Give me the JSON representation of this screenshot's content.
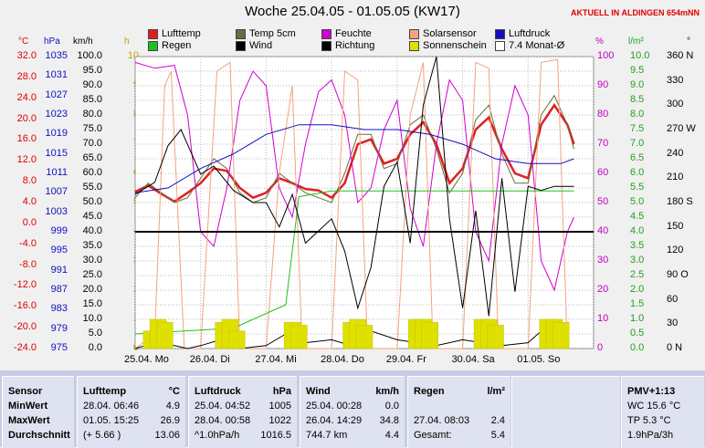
{
  "title": "Woche 25.04.05 - 01.05.05 (KW17)",
  "aktuell": "AKTUELL IN ALDINGEN 654mNN",
  "legend": [
    {
      "label": "Lufttemp",
      "color": "#e02020"
    },
    {
      "label": "Temp 5cm",
      "color": "#6b6b40"
    },
    {
      "label": "Feuchte",
      "color": "#d000d0"
    },
    {
      "label": "Solarsensor",
      "color": "#f4a37c"
    },
    {
      "label": "Luftdruck",
      "color": "#1010c0"
    },
    {
      "label": "Regen",
      "color": "#20c020"
    },
    {
      "label": "Wind",
      "color": "#000000"
    },
    {
      "label": "Richtung",
      "color": "#000000"
    },
    {
      "label": "Sonnenschein",
      "color": "#e0e000"
    },
    {
      "label": "7.4 Monat-Ø",
      "color": "#ffffff"
    }
  ],
  "axis_units": {
    "temp": "°C",
    "press": "hPa",
    "wind": "km/h",
    "h": "h",
    "pct": "%",
    "rain": "l/m²",
    "deg": "°"
  },
  "chart_data": {
    "type": "line",
    "x": [
      "25.04. Mo",
      "26.04. Di",
      "27.04. Mi",
      "28.04. Do",
      "29.04. Fr",
      "30.04. Sa",
      "01.05. So"
    ],
    "axes": {
      "temp": {
        "unit": "°C",
        "range": [
          -24,
          36
        ],
        "ticks": [
          "32.0",
          "28.0",
          "24.0",
          "20.0",
          "16.0",
          "12.0",
          "8.0",
          "4.0",
          "0.0",
          "-4.0",
          "-8.0",
          "-12.0",
          "-16.0",
          "-20.0",
          "-24.0"
        ]
      },
      "press": {
        "unit": "hPa",
        "range": [
          975,
          1035
        ],
        "ticks": [
          "1035",
          "1031",
          "1027",
          "1023",
          "1019",
          "1015",
          "1011",
          "1007",
          "1003",
          "999",
          "995",
          "991",
          "987",
          "983",
          "979",
          "975"
        ]
      },
      "wind": {
        "unit": "km/h",
        "range": [
          0,
          100
        ],
        "ticks": [
          "100.0",
          "95.0",
          "90.0",
          "85.0",
          "80.0",
          "75.0",
          "70.0",
          "65.0",
          "60.0",
          "55.0",
          "50.0",
          "45.0",
          "40.0",
          "35.0",
          "30.0",
          "25.0",
          "20.0",
          "15.0",
          "10.0",
          "5.0",
          "0.0"
        ]
      },
      "h": {
        "unit": "h",
        "range": [
          0,
          10
        ],
        "ticks": [
          "10",
          "9",
          "8",
          "7",
          "6",
          "5",
          "4",
          "3",
          "2",
          "1",
          "0"
        ]
      },
      "pct": {
        "unit": "%",
        "range": [
          0,
          100
        ],
        "ticks": [
          "100",
          "90",
          "80",
          "70",
          "60",
          "50",
          "40",
          "30",
          "20",
          "10",
          "0"
        ]
      },
      "rain": {
        "unit": "l/m²",
        "range": [
          0,
          10
        ],
        "ticks": [
          "10.0",
          "9.5",
          "9.0",
          "8.5",
          "8.0",
          "7.5",
          "7.0",
          "6.5",
          "6.0",
          "5.5",
          "5.0",
          "4.5",
          "4.0",
          "3.5",
          "3.0",
          "2.5",
          "2.0",
          "1.5",
          "1.0",
          "0.5",
          "0.0"
        ]
      },
      "deg": {
        "unit": "°",
        "range": [
          0,
          360
        ],
        "ticks": [
          "360 N",
          "330",
          "300",
          "270 W",
          "240",
          "210",
          "180 S",
          "150",
          "120",
          "90 O",
          "60",
          "30",
          "0 N"
        ]
      }
    },
    "series": [
      {
        "name": "Lufttemp",
        "axis": "temp",
        "color": "#e02020",
        "values": [
          [
            0,
            8.2
          ],
          [
            0.2,
            9.5
          ],
          [
            0.4,
            7.8
          ],
          [
            0.6,
            6.2
          ],
          [
            0.8,
            8
          ],
          [
            1,
            10
          ],
          [
            1.2,
            13
          ],
          [
            1.4,
            12.5
          ],
          [
            1.6,
            9
          ],
          [
            1.8,
            7
          ],
          [
            2,
            8
          ],
          [
            2.2,
            11
          ],
          [
            2.4,
            10
          ],
          [
            2.6,
            8.8
          ],
          [
            2.8,
            8.5
          ],
          [
            3,
            7
          ],
          [
            3.2,
            10
          ],
          [
            3.4,
            18
          ],
          [
            3.6,
            19
          ],
          [
            3.8,
            14
          ],
          [
            4,
            15
          ],
          [
            4.2,
            20
          ],
          [
            4.4,
            22.5
          ],
          [
            4.6,
            18
          ],
          [
            4.8,
            10
          ],
          [
            5,
            13
          ],
          [
            5.2,
            21
          ],
          [
            5.4,
            23.5
          ],
          [
            5.6,
            17
          ],
          [
            5.8,
            12
          ],
          [
            6,
            11
          ],
          [
            6.2,
            22
          ],
          [
            6.4,
            26
          ],
          [
            6.6,
            22
          ],
          [
            6.7,
            18
          ]
        ]
      },
      {
        "name": "Temp 5cm",
        "axis": "temp",
        "color": "#6b6b40",
        "values": [
          [
            0,
            7
          ],
          [
            0.2,
            10
          ],
          [
            0.4,
            8
          ],
          [
            0.6,
            6
          ],
          [
            0.8,
            7
          ],
          [
            1,
            11
          ],
          [
            1.2,
            15
          ],
          [
            1.4,
            13
          ],
          [
            1.6,
            8
          ],
          [
            1.8,
            6
          ],
          [
            2,
            7
          ],
          [
            2.2,
            12
          ],
          [
            2.4,
            10
          ],
          [
            2.6,
            8
          ],
          [
            2.8,
            7
          ],
          [
            3,
            6
          ],
          [
            3.2,
            12
          ],
          [
            3.4,
            20
          ],
          [
            3.6,
            20
          ],
          [
            3.8,
            13
          ],
          [
            4,
            14
          ],
          [
            4.2,
            22
          ],
          [
            4.4,
            24
          ],
          [
            4.6,
            17
          ],
          [
            4.8,
            8
          ],
          [
            5,
            12
          ],
          [
            5.2,
            23
          ],
          [
            5.4,
            26
          ],
          [
            5.6,
            16
          ],
          [
            5.8,
            10
          ],
          [
            6,
            10
          ],
          [
            6.2,
            24
          ],
          [
            6.4,
            28
          ],
          [
            6.6,
            22
          ],
          [
            6.7,
            17
          ]
        ]
      },
      {
        "name": "Feuchte",
        "axis": "pct",
        "color": "#d000d0",
        "values": [
          [
            0,
            98
          ],
          [
            0.3,
            96
          ],
          [
            0.6,
            97
          ],
          [
            0.8,
            80
          ],
          [
            1,
            40
          ],
          [
            1.2,
            35
          ],
          [
            1.4,
            55
          ],
          [
            1.6,
            85
          ],
          [
            1.8,
            95
          ],
          [
            2,
            90
          ],
          [
            2.2,
            55
          ],
          [
            2.4,
            45
          ],
          [
            2.6,
            70
          ],
          [
            2.8,
            88
          ],
          [
            3,
            92
          ],
          [
            3.2,
            80
          ],
          [
            3.4,
            50
          ],
          [
            3.6,
            55
          ],
          [
            3.8,
            75
          ],
          [
            4,
            85
          ],
          [
            4.2,
            48
          ],
          [
            4.4,
            35
          ],
          [
            4.6,
            70
          ],
          [
            4.8,
            92
          ],
          [
            5,
            85
          ],
          [
            5.2,
            40
          ],
          [
            5.4,
            30
          ],
          [
            5.6,
            70
          ],
          [
            5.8,
            90
          ],
          [
            6,
            80
          ],
          [
            6.2,
            30
          ],
          [
            6.4,
            20
          ],
          [
            6.6,
            40
          ],
          [
            6.7,
            45
          ]
        ]
      },
      {
        "name": "Solarsensor",
        "axis": "pct",
        "color": "#f4a37c",
        "values": [
          [
            0,
            0
          ],
          [
            0.3,
            5
          ],
          [
            0.45,
            90
          ],
          [
            0.55,
            95
          ],
          [
            0.75,
            0
          ],
          [
            1,
            0
          ],
          [
            1.25,
            95
          ],
          [
            1.45,
            98
          ],
          [
            1.6,
            0
          ],
          [
            2,
            0
          ],
          [
            2.2,
            60
          ],
          [
            2.4,
            90
          ],
          [
            2.55,
            0
          ],
          [
            3,
            0
          ],
          [
            3.2,
            95
          ],
          [
            3.4,
            92
          ],
          [
            3.55,
            0
          ],
          [
            4,
            0
          ],
          [
            4.2,
            80
          ],
          [
            4.4,
            98
          ],
          [
            4.55,
            0
          ],
          [
            5,
            0
          ],
          [
            5.2,
            98
          ],
          [
            5.4,
            96
          ],
          [
            5.55,
            0
          ],
          [
            6,
            0
          ],
          [
            6.2,
            98
          ],
          [
            6.45,
            99
          ],
          [
            6.6,
            0
          ]
        ]
      },
      {
        "name": "Luftdruck",
        "axis": "press",
        "color": "#1010c0",
        "values": [
          [
            0,
            1007
          ],
          [
            0.5,
            1008
          ],
          [
            1,
            1012
          ],
          [
            1.5,
            1015
          ],
          [
            2,
            1019
          ],
          [
            2.5,
            1021
          ],
          [
            3,
            1021
          ],
          [
            3.5,
            1020
          ],
          [
            4,
            1020
          ],
          [
            4.5,
            1019
          ],
          [
            5,
            1017
          ],
          [
            5.5,
            1014
          ],
          [
            6,
            1013
          ],
          [
            6.5,
            1013
          ],
          [
            6.7,
            1014
          ]
        ]
      },
      {
        "name": "Regen",
        "axis": "rain",
        "color": "#20c020",
        "values": [
          [
            0,
            0.5
          ],
          [
            1.5,
            0.7
          ],
          [
            2.3,
            1.5
          ],
          [
            2.5,
            5.2
          ],
          [
            3,
            5.4
          ],
          [
            6.7,
            5.4
          ]
        ]
      },
      {
        "name": "Wind",
        "axis": "wind",
        "color": "#000000",
        "values": [
          [
            0,
            0
          ],
          [
            0.3,
            2
          ],
          [
            0.6,
            1
          ],
          [
            0.8,
            0
          ],
          [
            1,
            1
          ],
          [
            1.3,
            3
          ],
          [
            1.6,
            0
          ],
          [
            2,
            1
          ],
          [
            2.3,
            5
          ],
          [
            2.6,
            2
          ],
          [
            3,
            3
          ],
          [
            3.3,
            1
          ],
          [
            3.6,
            6
          ],
          [
            4,
            3
          ],
          [
            4.3,
            2
          ],
          [
            4.6,
            1
          ],
          [
            5,
            3
          ],
          [
            5.3,
            2
          ],
          [
            5.6,
            1
          ],
          [
            6,
            2
          ],
          [
            6.3,
            8
          ],
          [
            6.6,
            1
          ]
        ]
      },
      {
        "name": "Richtung",
        "axis": "deg",
        "color": "#000000",
        "values": [
          [
            0,
            190
          ],
          [
            0.3,
            205
          ],
          [
            0.5,
            250
          ],
          [
            0.7,
            270
          ],
          [
            1,
            215
          ],
          [
            1.2,
            225
          ],
          [
            1.5,
            195
          ],
          [
            1.8,
            180
          ],
          [
            2,
            180
          ],
          [
            2.2,
            150
          ],
          [
            2.4,
            190
          ],
          [
            2.6,
            130
          ],
          [
            3,
            160
          ],
          [
            3.2,
            120
          ],
          [
            3.4,
            50
          ],
          [
            3.6,
            100
          ],
          [
            3.8,
            200
          ],
          [
            4,
            230
          ],
          [
            4.2,
            130
          ],
          [
            4.4,
            300
          ],
          [
            4.6,
            360
          ],
          [
            4.8,
            160
          ],
          [
            5,
            50
          ],
          [
            5.2,
            170
          ],
          [
            5.4,
            40
          ],
          [
            5.6,
            210
          ],
          [
            5.8,
            70
          ],
          [
            6,
            200
          ],
          [
            6.2,
            195
          ],
          [
            6.4,
            200
          ],
          [
            6.7,
            200
          ]
        ]
      },
      {
        "name": "Sonnenschein",
        "axis": "h",
        "type": "bar",
        "color": "#e0e000",
        "values": [
          [
            0.25,
            0.6
          ],
          [
            0.35,
            1
          ],
          [
            0.45,
            0.9
          ],
          [
            1.35,
            0.9
          ],
          [
            1.45,
            1
          ],
          [
            1.55,
            0.6
          ],
          [
            2.4,
            0.9
          ],
          [
            2.5,
            0.8
          ],
          [
            3.3,
            0.9
          ],
          [
            3.4,
            1
          ],
          [
            3.5,
            0.8
          ],
          [
            4.3,
            1
          ],
          [
            4.4,
            1
          ],
          [
            4.5,
            0.9
          ],
          [
            5.3,
            1
          ],
          [
            5.4,
            1
          ],
          [
            5.5,
            0.8
          ],
          [
            6.3,
            1
          ],
          [
            6.4,
            1
          ],
          [
            6.5,
            0.9
          ]
        ]
      }
    ],
    "reference_line": {
      "name": "7.4 Monat-Ø",
      "axis": "temp",
      "value": 0
    }
  },
  "stats": {
    "sensor": {
      "header": "Sensor",
      "rows": [
        "MinWert",
        "MaxWert",
        "Durchschnitt"
      ]
    },
    "lufttemp": {
      "header": "Lufttemp",
      "unit": "°C",
      "rows": [
        [
          "28.04.  06:46",
          "4.9"
        ],
        [
          "01.05.  15:25",
          "26.9"
        ],
        [
          "(+ 5.66 )",
          "13.06"
        ]
      ]
    },
    "luftdruck": {
      "header": "Luftdruck",
      "unit": "hPa",
      "rows": [
        [
          "25.04.  04:52",
          "1005"
        ],
        [
          "28.04.  00:58",
          "1022"
        ],
        [
          "^1.0hPa/h",
          "1016.5"
        ]
      ]
    },
    "wind": {
      "header": "Wind",
      "unit": "km/h",
      "rows": [
        [
          "25.04.  00:28",
          "0.0"
        ],
        [
          "26.04.  14:29",
          "34.8"
        ],
        [
          "744.7 km",
          "4.4"
        ]
      ]
    },
    "regen": {
      "header": "Regen",
      "unit": "l/m²",
      "rows": [
        [
          "",
          ""
        ],
        [
          "27.04.  08:03",
          "2.4"
        ],
        [
          "Gesamt:",
          "5.4"
        ]
      ]
    },
    "pmv": {
      "header": "PMV+1:13",
      "rows": [
        "WC 15.6 °C",
        "TP 5.3 °C",
        "1.9hPa/3h"
      ]
    }
  }
}
